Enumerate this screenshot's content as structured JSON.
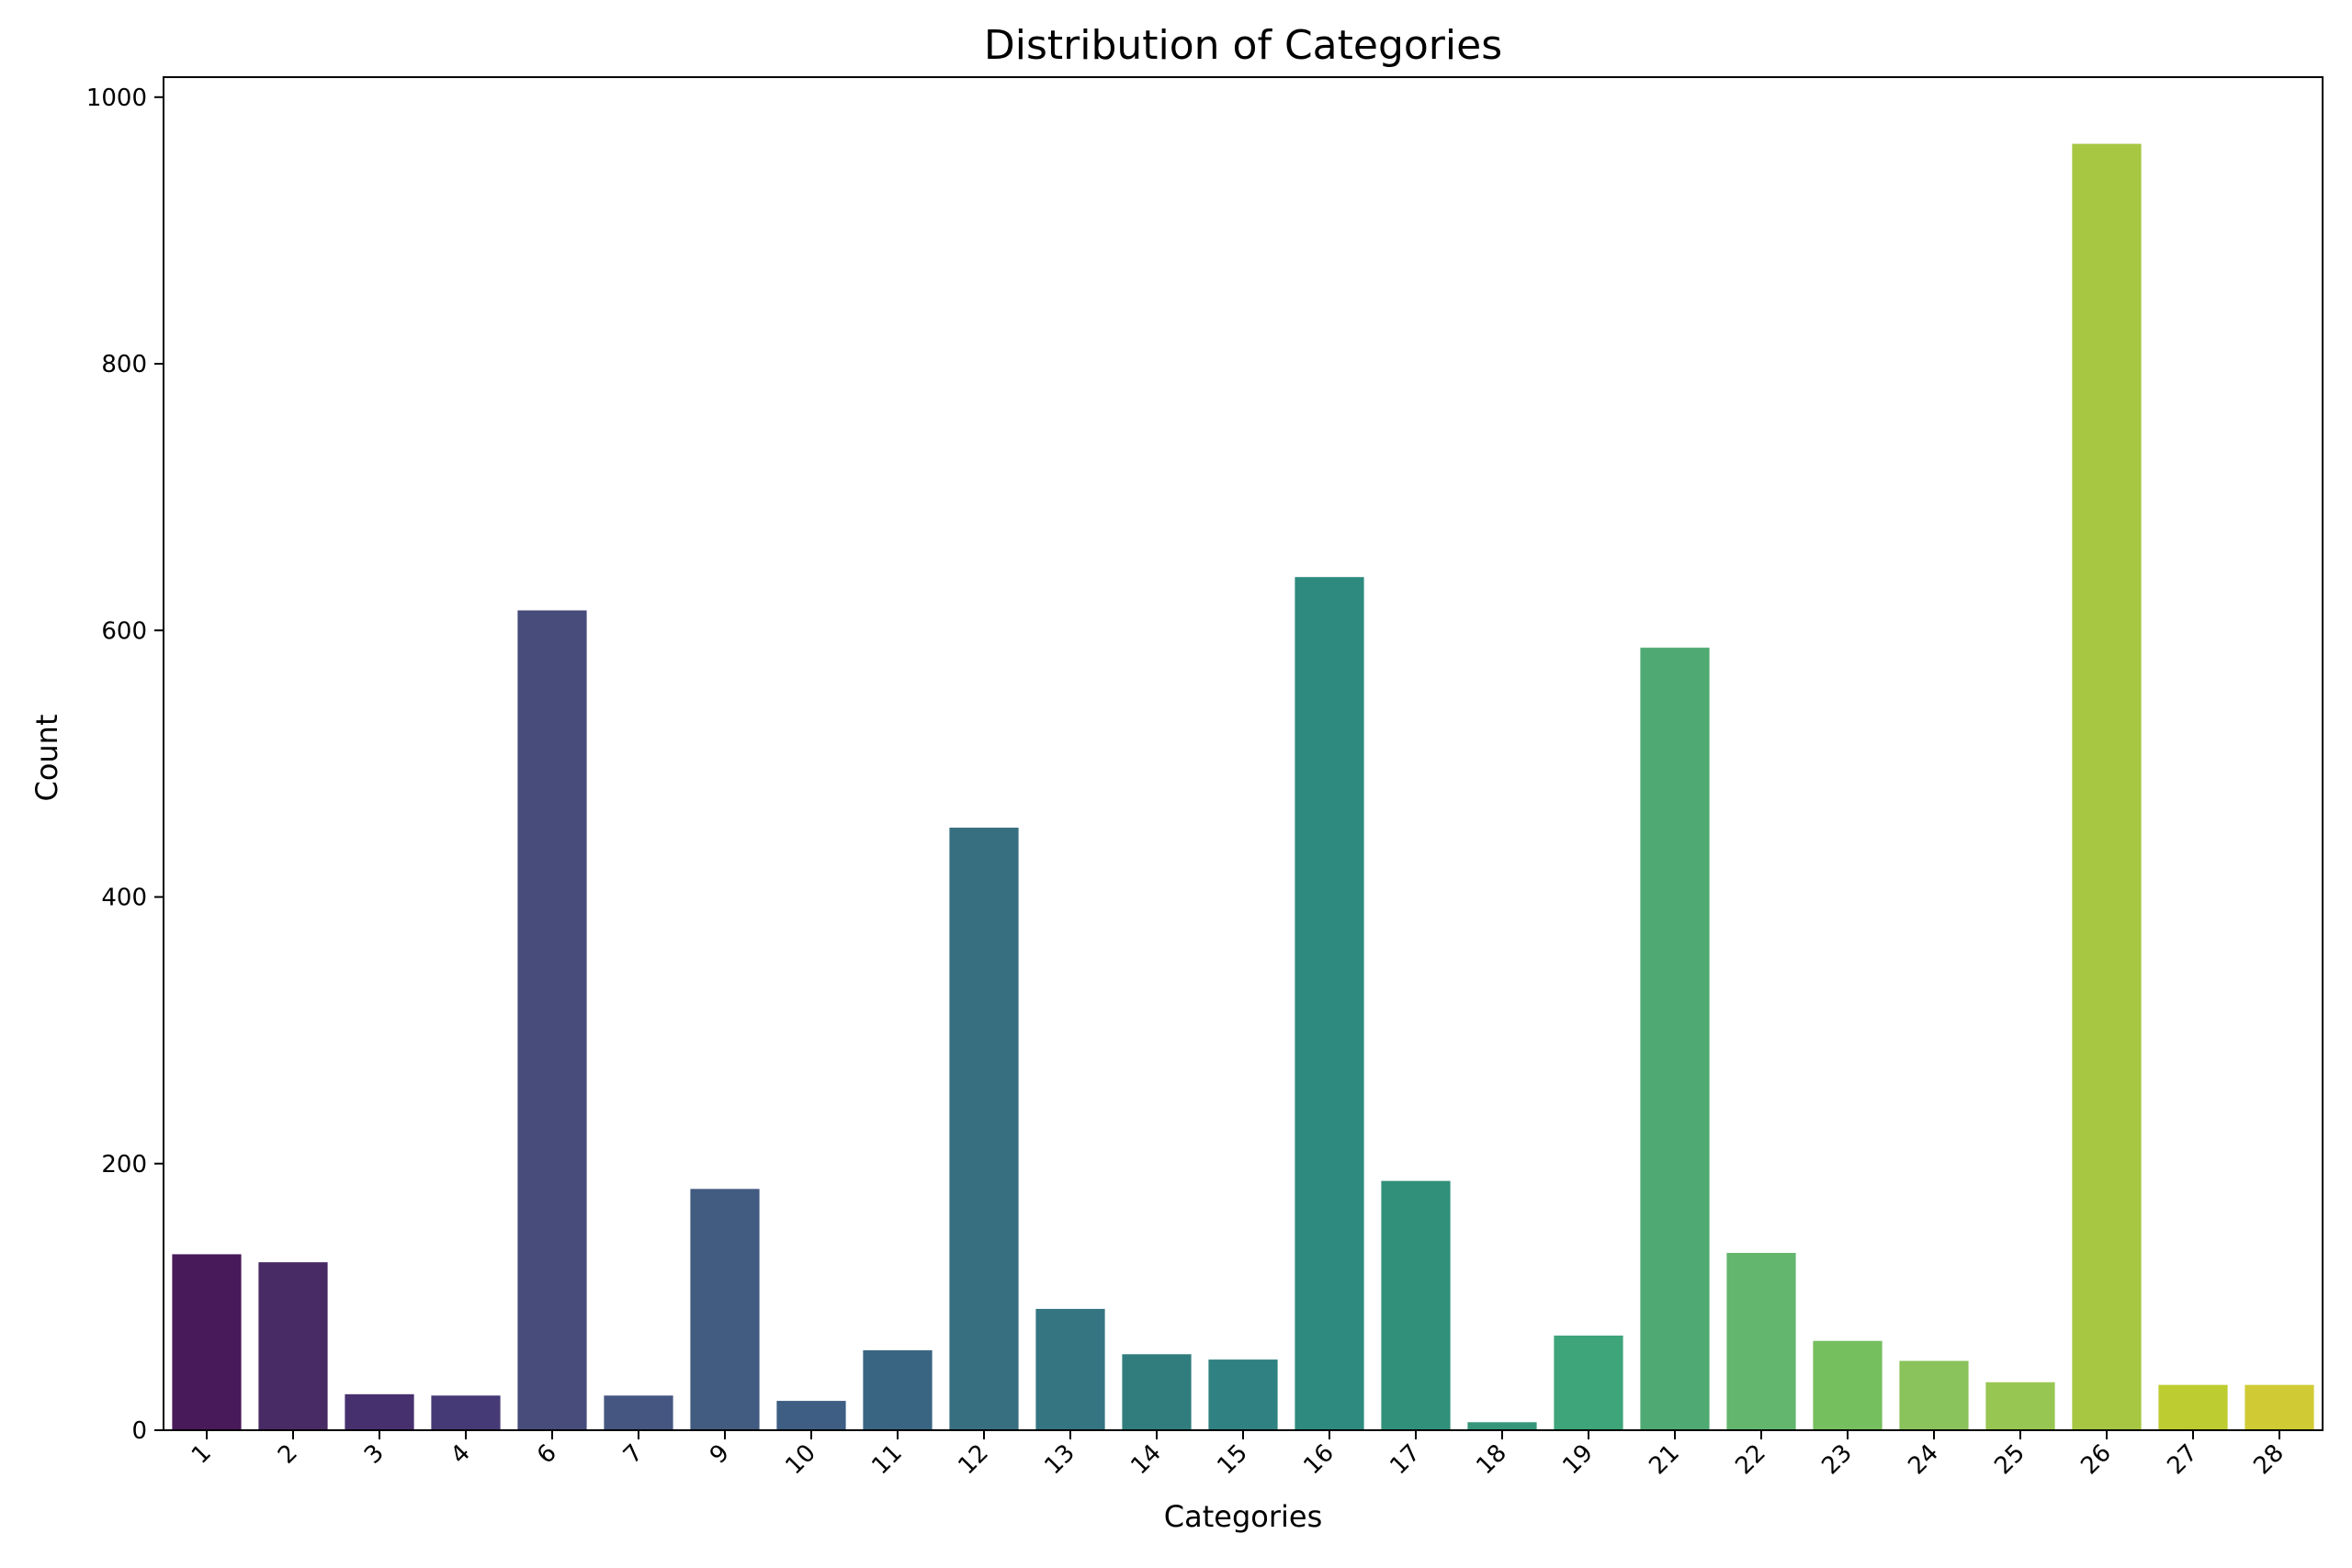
{
  "chart_data": {
    "type": "bar",
    "title": "Distribution of Categories",
    "xlabel": "Categories",
    "ylabel": "Count",
    "ylim": [
      0,
      1015
    ],
    "yticks": [
      0,
      200,
      400,
      600,
      800,
      1000
    ],
    "categories": [
      "1",
      "2",
      "3",
      "4",
      "6",
      "7",
      "9",
      "10",
      "11",
      "12",
      "13",
      "14",
      "15",
      "16",
      "17",
      "18",
      "19",
      "21",
      "22",
      "23",
      "24",
      "25",
      "26",
      "27",
      "28"
    ],
    "values": [
      132,
      126,
      27,
      26,
      615,
      26,
      181,
      22,
      60,
      452,
      91,
      57,
      53,
      640,
      187,
      6,
      71,
      587,
      133,
      67,
      52,
      36,
      965,
      34,
      34
    ],
    "colors": [
      "#481a5a",
      "#482a64",
      "#47306e",
      "#463a76",
      "#474c7b",
      "#455681",
      "#425b80",
      "#3e5e83",
      "#3a6582",
      "#376f80",
      "#347581",
      "#317d7d",
      "#2f8281",
      "#2e8a7e",
      "#31907a",
      "#35967a",
      "#3ea47a",
      "#4eaa72",
      "#62b66d",
      "#76bf5e",
      "#8ac25b",
      "#98c652",
      "#a7c642",
      "#bdcc30",
      "#d0cb35"
    ],
    "grid": false,
    "legend": "none"
  }
}
